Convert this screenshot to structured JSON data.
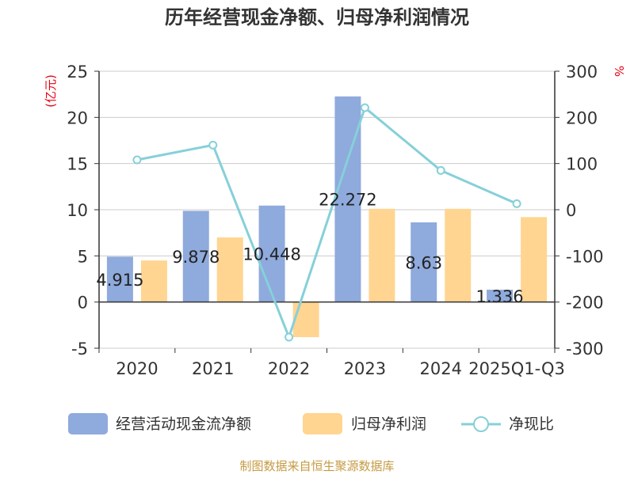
{
  "chart_data": {
    "type": "bar",
    "title": "历年经营现金净额、归母净利润情况",
    "categories": [
      "2020",
      "2021",
      "2022",
      "2023",
      "2024",
      "2025Q1-Q3"
    ],
    "left_axis": {
      "label": "(亿元)",
      "ylim": [
        -5,
        25
      ],
      "ticks": [
        -5,
        0,
        5,
        10,
        15,
        20,
        25
      ]
    },
    "right_axis": {
      "label": "%",
      "ylim": [
        -300,
        300
      ],
      "ticks": [
        -300,
        -200,
        -100,
        0,
        100,
        200,
        300
      ]
    },
    "series": [
      {
        "name": "经营活动现金流净额",
        "type": "bar",
        "axis": "left",
        "color": "#8faadc",
        "values": [
          4.915,
          9.878,
          10.448,
          22.272,
          8.63,
          1.336
        ],
        "data_labels": [
          "4.915",
          "9.878",
          "10.448",
          "22.272",
          "8.63",
          "1.336"
        ]
      },
      {
        "name": "归母净利润",
        "type": "bar",
        "axis": "left",
        "color": "#ffd591",
        "values": [
          4.5,
          7.0,
          -3.8,
          10.1,
          10.1,
          9.2
        ]
      },
      {
        "name": "净现比",
        "type": "line",
        "axis": "right",
        "color": "#86d0d9",
        "values": [
          108,
          140,
          -276,
          221,
          85,
          13
        ]
      }
    ],
    "grid": true,
    "legend_position": "bottom"
  },
  "source": "制图数据来自恒生聚源数据库",
  "colors": {
    "axis_title": "#e60012",
    "source": "#c69a42",
    "grid": "#cccccc",
    "axis": "#333333",
    "text": "#333333"
  }
}
